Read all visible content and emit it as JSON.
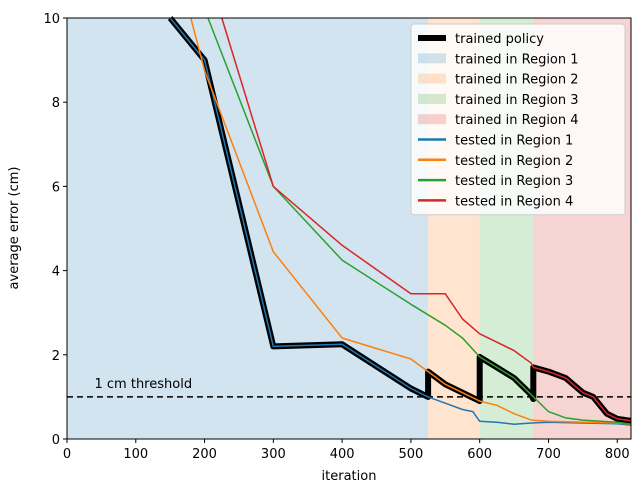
{
  "chart_data": {
    "type": "line",
    "xlabel": "iteration",
    "ylabel": "average error (cm)",
    "xlim": [
      0,
      820
    ],
    "ylim": [
      0,
      10
    ],
    "xticks": [
      0,
      100,
      200,
      300,
      400,
      500,
      600,
      700,
      800
    ],
    "yticks": [
      0,
      2,
      4,
      6,
      8,
      10
    ],
    "regions": [
      {
        "name": "trained in Region 1",
        "color": "#1f77b4",
        "range": [
          0,
          525
        ]
      },
      {
        "name": "trained in Region 2",
        "color": "#ff7f0e",
        "range": [
          525,
          600
        ]
      },
      {
        "name": "trained in Region 3",
        "color": "#2ca02c",
        "range": [
          600,
          678
        ]
      },
      {
        "name": "trained in Region 4",
        "color": "#d62728",
        "range": [
          678,
          820
        ]
      }
    ],
    "threshold": {
      "value": 1,
      "label": "1 cm threshold"
    },
    "series": [
      {
        "name": "trained policy",
        "color": "#000000",
        "x": [
          150,
          200,
          300,
          400,
          500,
          525,
          525,
          550,
          575,
          600,
          600,
          625,
          650,
          675,
          678,
          678,
          700,
          725,
          750,
          765,
          785,
          800,
          820
        ],
        "values": [
          10,
          9,
          2.2,
          2.25,
          1.2,
          1.0,
          1.6,
          1.3,
          1.1,
          0.9,
          1.95,
          1.7,
          1.45,
          1.05,
          0.95,
          1.7,
          1.6,
          1.45,
          1.1,
          1.0,
          0.6,
          0.48,
          0.43
        ]
      },
      {
        "name": "tested in Region 1",
        "color": "#1f77b4",
        "x": [
          150,
          200,
          300,
          400,
          500,
          525,
          550,
          575,
          590,
          600,
          625,
          650,
          675,
          700,
          750,
          800,
          820
        ],
        "values": [
          10,
          9,
          2.2,
          2.25,
          1.2,
          1.0,
          0.85,
          0.7,
          0.65,
          0.42,
          0.4,
          0.35,
          0.38,
          0.4,
          0.38,
          0.36,
          0.33
        ]
      },
      {
        "name": "tested in Region 2",
        "color": "#ff7f0e",
        "x": [
          180,
          200,
          300,
          400,
          500,
          525,
          550,
          575,
          600,
          625,
          650,
          675,
          700,
          750,
          800,
          820
        ],
        "values": [
          10,
          8.75,
          4.45,
          2.4,
          1.9,
          1.6,
          1.3,
          1.1,
          0.9,
          0.8,
          0.6,
          0.45,
          0.42,
          0.4,
          0.38,
          0.35
        ]
      },
      {
        "name": "tested in Region 3",
        "color": "#2ca02c",
        "x": [
          205,
          300,
          400,
          500,
          550,
          575,
          600,
          625,
          650,
          675,
          700,
          725,
          750,
          800,
          820
        ],
        "values": [
          10,
          6.0,
          4.25,
          3.2,
          2.7,
          2.4,
          1.95,
          1.7,
          1.45,
          1.05,
          0.65,
          0.5,
          0.45,
          0.4,
          0.35
        ]
      },
      {
        "name": "tested in Region 4",
        "color": "#d62728",
        "x": [
          225,
          300,
          400,
          500,
          550,
          575,
          600,
          625,
          650,
          675,
          678,
          700,
          725,
          750,
          765,
          785,
          800,
          820
        ],
        "values": [
          10,
          6.0,
          4.6,
          3.45,
          3.45,
          2.85,
          2.5,
          2.3,
          2.1,
          1.8,
          1.7,
          1.6,
          1.45,
          1.1,
          1.0,
          0.6,
          0.48,
          0.43
        ]
      }
    ]
  }
}
